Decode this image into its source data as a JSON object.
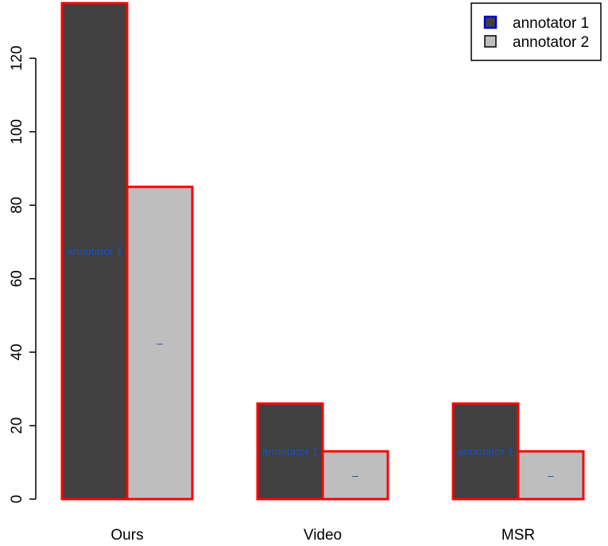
{
  "chart_data": {
    "type": "bar",
    "categories": [
      "Ours",
      "Video",
      "MSR"
    ],
    "series": [
      {
        "name": "annotator 1",
        "values": [
          135,
          26,
          26
        ],
        "color": "#404040",
        "bar_labels": [
          "annotator 1",
          "annotator 1",
          "annotator 1"
        ]
      },
      {
        "name": "annotator 2",
        "values": [
          85,
          13,
          13
        ],
        "color": "#bebebe",
        "bar_labels": [
          "–",
          "–",
          "–"
        ]
      }
    ],
    "bar_border_color": "#ff0000",
    "bar_label_color": "#1f4fbf",
    "legend_marker_border_color": "#0000cc",
    "yticks": [
      0,
      20,
      40,
      60,
      80,
      100,
      120
    ],
    "ylim": [
      0,
      135
    ],
    "legend_position": "top-right",
    "grid": false
  }
}
